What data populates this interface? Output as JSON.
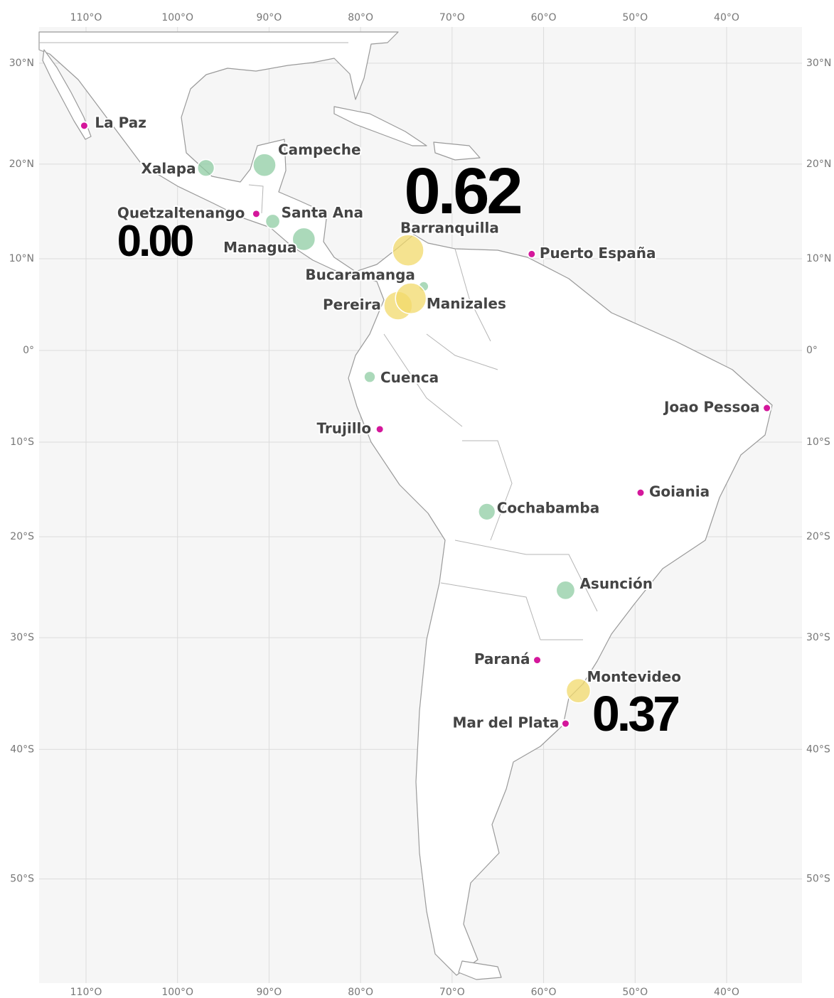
{
  "map": {
    "lon_ticks": [
      {
        "value": -110,
        "label": "110°O"
      },
      {
        "value": -100,
        "label": "100°O"
      },
      {
        "value": -90,
        "label": "90°O"
      },
      {
        "value": -80,
        "label": "80°O"
      },
      {
        "value": -70,
        "label": "70°O"
      },
      {
        "value": -60,
        "label": "60°O"
      },
      {
        "value": -50,
        "label": "50°O"
      },
      {
        "value": -40,
        "label": "40°O"
      }
    ],
    "lat_ticks": [
      {
        "value": 30,
        "label": "30°N"
      },
      {
        "value": 20,
        "label": "20°N"
      },
      {
        "value": 10,
        "label": "10°N"
      },
      {
        "value": 0,
        "label": "0°"
      },
      {
        "value": -10,
        "label": "10°S"
      },
      {
        "value": -20,
        "label": "20°S"
      },
      {
        "value": -30,
        "label": "30°S"
      },
      {
        "value": -40,
        "label": "40°S"
      },
      {
        "value": -50,
        "label": "50°S"
      }
    ],
    "cities": [
      {
        "name": "La Paz",
        "lon": -110.2,
        "lat": 23.9,
        "value": 0,
        "color": "#d4179b"
      },
      {
        "name": "Xalapa",
        "lon": -96.9,
        "lat": 19.6,
        "value": 0.18,
        "color": "#8fcca3"
      },
      {
        "name": "Campeche",
        "lon": -90.5,
        "lat": 19.9,
        "value": 0.33,
        "color": "#8fcca3"
      },
      {
        "name": "Quetzaltenango",
        "lon": -91.4,
        "lat": 14.8,
        "value": 0,
        "color": "#d4179b"
      },
      {
        "name": "Santa Ana",
        "lon": -89.6,
        "lat": 14.0,
        "value": 0.13,
        "color": "#8fcca3"
      },
      {
        "name": "Managua",
        "lon": -86.2,
        "lat": 12.1,
        "value": 0.33,
        "color": "#8fcca3"
      },
      {
        "name": "Barranquilla",
        "lon": -74.8,
        "lat": 10.9,
        "value": 0.62,
        "color": "#f2d96b"
      },
      {
        "name": "Puerto España",
        "lon": -61.3,
        "lat": 10.5,
        "value": 0,
        "color": "#d4179b"
      },
      {
        "name": "Bucaramanga",
        "lon": -73.1,
        "lat": 7.0,
        "value": 0.06,
        "color": "#8fcca3"
      },
      {
        "name": "Pereira",
        "lon": -75.9,
        "lat": 4.9,
        "value": 0.51,
        "color": "#f2d96b"
      },
      {
        "name": "Manizales",
        "lon": -74.5,
        "lat": 5.7,
        "value": 0.6,
        "color": "#f2d96b"
      },
      {
        "name": "Cuenca",
        "lon": -79.0,
        "lat": -2.9,
        "value": 0.08,
        "color": "#8fcca3"
      },
      {
        "name": "Trujillo",
        "lon": -77.9,
        "lat": -8.6,
        "value": 0,
        "color": "#d4179b"
      },
      {
        "name": "Joao Pessoa",
        "lon": -35.6,
        "lat": -6.3,
        "value": 0,
        "color": "#d4179b"
      },
      {
        "name": "Goiania",
        "lon": -49.4,
        "lat": -15.4,
        "value": 0,
        "color": "#d4179b"
      },
      {
        "name": "Cochabamba",
        "lon": -66.2,
        "lat": -17.4,
        "value": 0.18,
        "color": "#8fcca3"
      },
      {
        "name": "Asunción",
        "lon": -57.6,
        "lat": -25.4,
        "value": 0.22,
        "color": "#8fcca3"
      },
      {
        "name": "Paraná",
        "lon": -60.7,
        "lat": -32.1,
        "value": 0,
        "color": "#d4179b"
      },
      {
        "name": "Montevideo",
        "lon": -56.2,
        "lat": -34.9,
        "value": 0.37,
        "color": "#f2d96b"
      },
      {
        "name": "Mar del Plata",
        "lon": -57.6,
        "lat": -37.8,
        "value": 0,
        "color": "#d4179b"
      }
    ],
    "annotations": [
      {
        "text": "0.62"
      },
      {
        "text": "0.00"
      },
      {
        "text": "0.37"
      }
    ]
  }
}
